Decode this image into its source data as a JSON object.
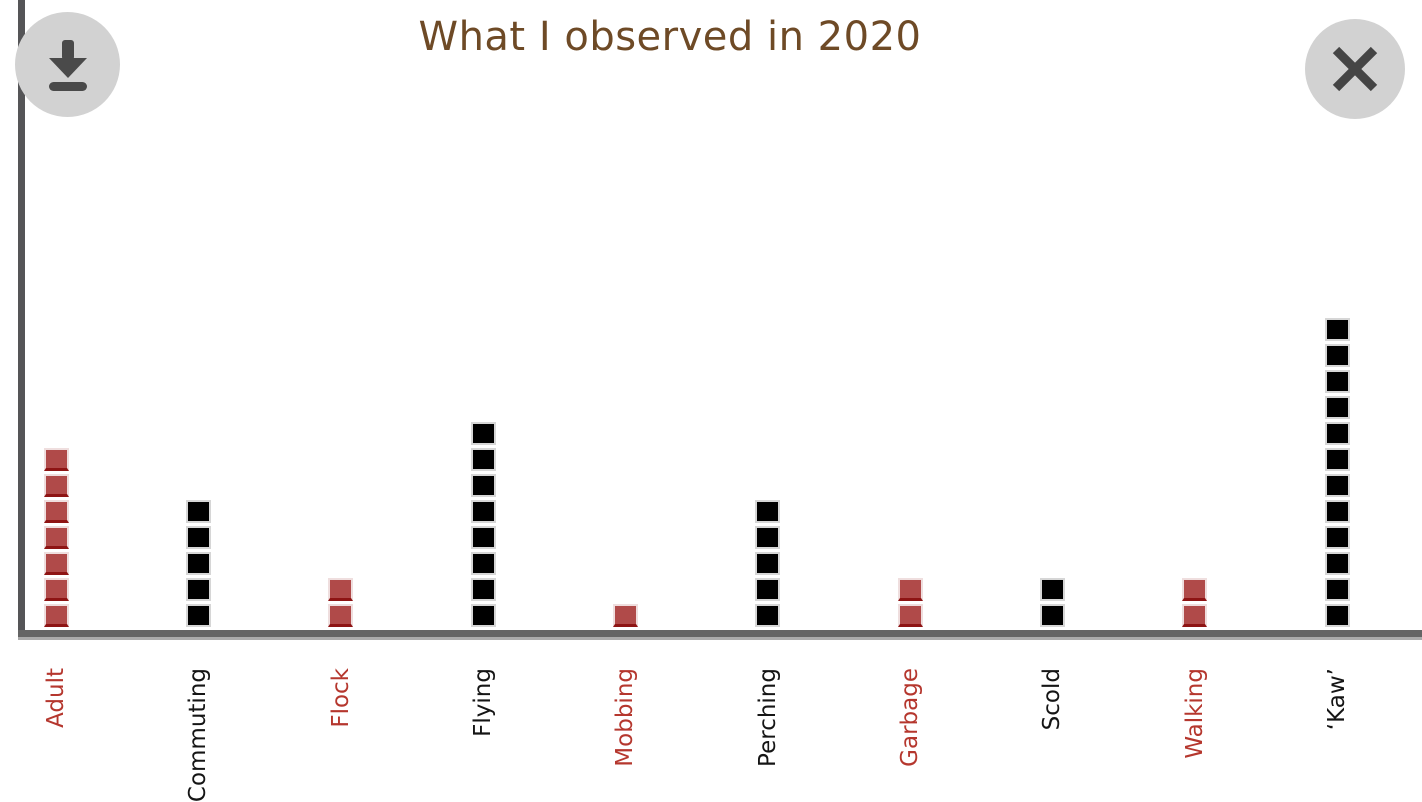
{
  "header": {
    "title": "What I observed in 2020"
  },
  "toolbar": {
    "download_button": {
      "icon": "download-icon"
    },
    "close_button": {
      "icon": "close-icon"
    }
  },
  "colors": {
    "title_text": "#6e4a26",
    "axis": "#5a5a5a",
    "axis_shadow": "#aaaaaa",
    "button_background": "#d2d2d2",
    "button_icon": "#4a4a4a",
    "red_square": "#b04a49",
    "red_square_bottom_edge": "#8e1414",
    "black_square": "#000000",
    "red_label": "#b5372e",
    "black_label": "#151515"
  },
  "chart_data": {
    "type": "bar",
    "variant": "unit_square_pictograph",
    "title": "What I observed in 2020",
    "categories": [
      "Adult",
      "Commuting",
      "Flock",
      "Flying",
      "Mobbing",
      "Perching",
      "Garbage",
      "Scold",
      "Walking",
      "‘Kaw’"
    ],
    "values": [
      7,
      5,
      2,
      8,
      1,
      5,
      2,
      2,
      2,
      12
    ],
    "bar_styles": [
      "red",
      "black",
      "red",
      "black",
      "red",
      "black",
      "red",
      "black",
      "red",
      "black"
    ],
    "bar_colors": [
      "#b04a49",
      "#000000",
      "#b04a49",
      "#000000",
      "#b04a49",
      "#000000",
      "#b04a49",
      "#000000",
      "#b04a49",
      "#000000"
    ],
    "label_colors": [
      "#b5372e",
      "#151515",
      "#b5372e",
      "#151515",
      "#b5372e",
      "#151515",
      "#b5372e",
      "#151515",
      "#b5372e",
      "#151515"
    ],
    "xlabel": "",
    "ylabel": "",
    "y_axis_ticks": false,
    "gridlines": false,
    "legend": false,
    "x_tick_rotation": 90
  }
}
